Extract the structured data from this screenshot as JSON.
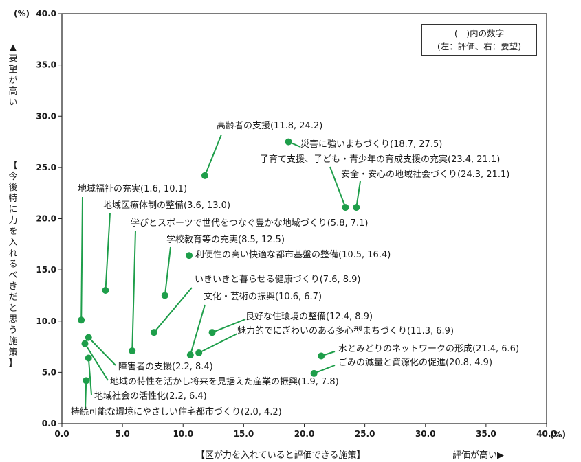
{
  "chart_data": {
    "type": "scatter",
    "x_unit": "(%)",
    "y_unit": "(%)",
    "xlabel": "【区が力を入れていると評価できる施策】",
    "xlabel_high": "評価が高い▶",
    "ylabel_top": "▲要望が高い",
    "ylabel_bottom": "【今後特に力を入れるべきだと思う施策】",
    "legend_line1": "(　)内の数字",
    "legend_line2": "(左：評価、右：要望)",
    "xlim": [
      0,
      40
    ],
    "ylim": [
      0,
      40
    ],
    "x_ticks": [
      "0.0",
      "5.0",
      "10.0",
      "15.0",
      "20.0",
      "25.0",
      "30.0",
      "35.0",
      "40.0"
    ],
    "y_ticks": [
      "0.0",
      "5.0",
      "10.0",
      "15.0",
      "20.0",
      "25.0",
      "30.0",
      "35.0",
      "40.0"
    ],
    "grid": false,
    "point_color": "#1e9e4a",
    "points": [
      {
        "label": "高齢者の支援(11.8, 24.2)",
        "x": 11.8,
        "y": 24.2
      },
      {
        "label": "災害に強いまちづくり(18.7, 27.5)",
        "x": 18.7,
        "y": 27.5
      },
      {
        "label": "子育て支援、子ども・青少年の育成支援の充実(23.4, 21.1)",
        "x": 23.4,
        "y": 21.1
      },
      {
        "label": "安全・安心の地域社会づくり(24.3, 21.1)",
        "x": 24.3,
        "y": 21.1
      },
      {
        "label": "地域福祉の充実(1.6, 10.1)",
        "x": 1.6,
        "y": 10.1
      },
      {
        "label": "地域医療体制の整備(3.6, 13.0)",
        "x": 3.6,
        "y": 13.0
      },
      {
        "label": "学びとスポーツで世代をつなぐ豊かな地域づくり(5.8, 7.1)",
        "x": 5.8,
        "y": 7.1
      },
      {
        "label": "学校教育等の充実(8.5, 12.5)",
        "x": 8.5,
        "y": 12.5
      },
      {
        "label": "利便性の高い快適な都市基盤の整備(10.5, 16.4)",
        "x": 10.5,
        "y": 16.4
      },
      {
        "label": "いきいきと暮らせる健康づくり(7.6, 8.9)",
        "x": 7.6,
        "y": 8.9
      },
      {
        "label": "文化・芸術の振興(10.6, 6.7)",
        "x": 10.6,
        "y": 6.7
      },
      {
        "label": "良好な住環境の整備(12.4, 8.9)",
        "x": 12.4,
        "y": 8.9
      },
      {
        "label": "魅力的でにぎわいのある多心型まちづくり(11.3, 6.9)",
        "x": 11.3,
        "y": 6.9
      },
      {
        "label": "水とみどりのネットワークの形成(21.4, 6.6)",
        "x": 21.4,
        "y": 6.6
      },
      {
        "label": "ごみの減量と資源化の促進(20.8, 4.9)",
        "x": 20.8,
        "y": 4.9
      },
      {
        "label": "障害者の支援(2.2, 8.4)",
        "x": 2.2,
        "y": 8.4
      },
      {
        "label": "地域の特性を活かし将来を見据えた産業の振興(1.9, 7.8)",
        "x": 1.9,
        "y": 7.8
      },
      {
        "label": "地域社会の活性化(2.2, 6.4)",
        "x": 2.2,
        "y": 6.4
      },
      {
        "label": "持続可能な環境にやさしい住宅都市づくり(2.0, 4.2)",
        "x": 2.0,
        "y": 4.2
      }
    ]
  }
}
